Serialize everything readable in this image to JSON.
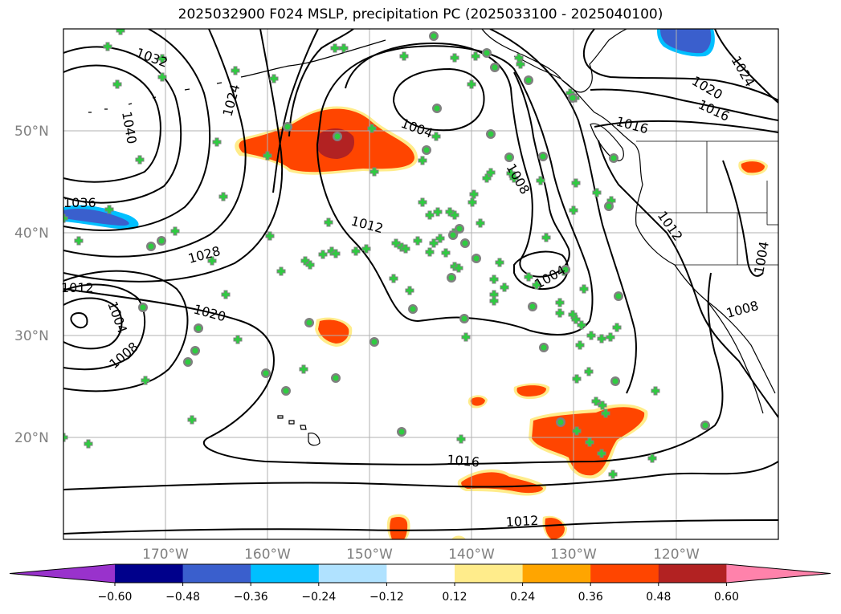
{
  "title": "2025032900 F024 MSLP, precipitation PC (2025033100 - 2025040100)",
  "latitude_labels": [
    "20°N",
    "30°N",
    "40°N",
    "50°N"
  ],
  "longitude_labels": [
    "170°W",
    "160°W",
    "150°W",
    "140°W",
    "130°W",
    "120°W"
  ],
  "isobar_labels": [
    "1032",
    "1040",
    "1036",
    "1028",
    "1024",
    "1020",
    "1012",
    "1004",
    "1008",
    "1004",
    "1012",
    "1008",
    "1016",
    "1004",
    "1016",
    "1012",
    "1024",
    "1020",
    "1016",
    "1012",
    "1004",
    "1008"
  ],
  "colorbar": {
    "tick_labels": [
      "−0.60",
      "−0.48",
      "−0.36",
      "−0.24",
      "−0.12",
      "0.12",
      "0.24",
      "0.36",
      "0.48",
      "0.60"
    ],
    "colors": [
      "#9932cc",
      "#00008b",
      "#3a5fcd",
      "#00bfff",
      "#b0e2ff",
      "#ffffff",
      "#ffec8b",
      "#ffa500",
      "#ff4500",
      "#b22222",
      "#ff82ab"
    ]
  },
  "colors": {
    "isobar": "#000000",
    "positive_fill": "#ff4500",
    "strong_positive_fill": "#b22222",
    "weak_positive_fill": "#ffec8b",
    "negative_fill": "#3a5fcd",
    "station_cross": "#2ecc40",
    "station_circle": "#808080"
  }
}
